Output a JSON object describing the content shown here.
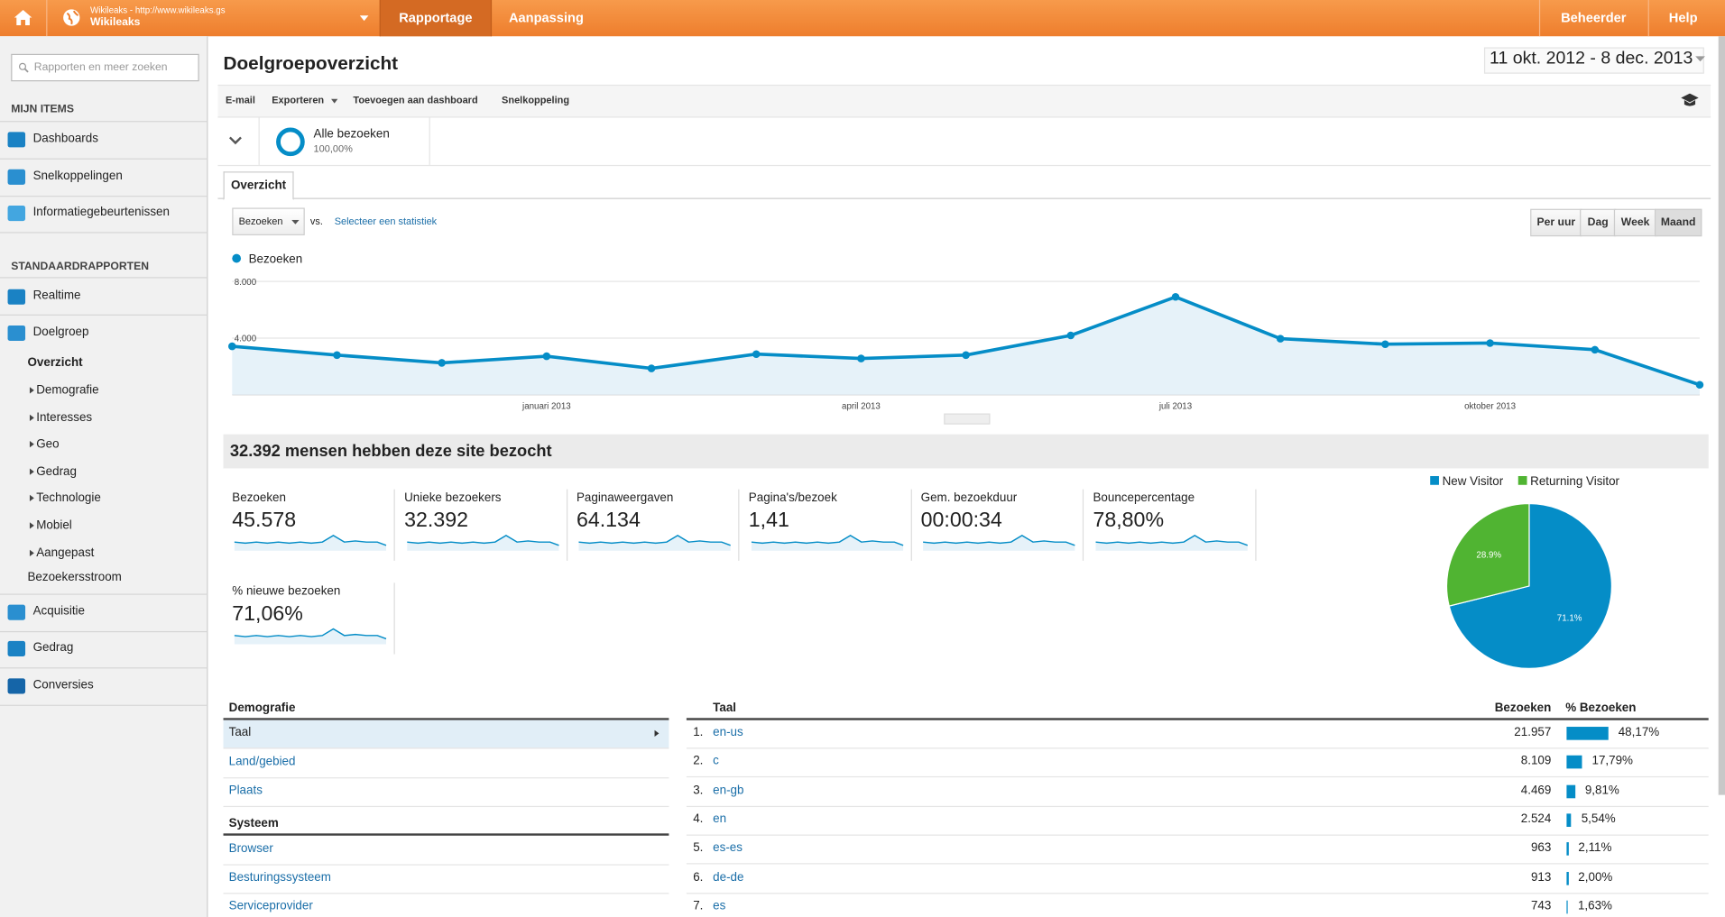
{
  "header": {
    "account_url": "Wikileaks - http://www.wikileaks.gs",
    "account_name": "Wikileaks",
    "tabs": [
      "Rapportage",
      "Aanpassing"
    ],
    "admin": "Beheerder",
    "help": "Help"
  },
  "sidebar": {
    "search": "Rapporten en meer zoeken",
    "my_items_title": "MIJN ITEMS",
    "my_items": [
      "Dashboards",
      "Snelkoppelingen",
      "Informatiegebeurtenissen"
    ],
    "standard_title": "STANDAARDRAPPORTEN",
    "realtime": "Realtime",
    "audience": "Doelgroep",
    "audience_items": [
      "Overzicht",
      "Demografie",
      "Interesses",
      "Geo",
      "Gedrag",
      "Technologie",
      "Mobiel",
      "Aangepast",
      "Bezoekersstroom"
    ],
    "more_items": [
      "Acquisitie",
      "Gedrag",
      "Conversies"
    ]
  },
  "page": {
    "title": "Doelgroepoverzicht",
    "date_range": "11 okt. 2012 - 8 dec. 2013",
    "actions": [
      "E-mail",
      "Exporteren",
      "Toevoegen aan dashboard",
      "Snelkoppeling"
    ],
    "segment": {
      "name": "Alle bezoeken",
      "share": "100,00%"
    },
    "tab": "Overzicht",
    "metric_select": "Bezoeken",
    "vs": "vs.",
    "select_metric": "Selecteer een statistiek",
    "granularity": [
      "Per uur",
      "Dag",
      "Week",
      "Maand"
    ],
    "summary": "32.392 mensen hebben deze site bezocht"
  },
  "line_chart": {
    "type": "line",
    "series": [
      {
        "name": "Bezoeken",
        "color": "#058dc7",
        "values": [
          3420,
          2800,
          2250,
          2720,
          1860,
          2870,
          2560,
          2800,
          4190,
          6910,
          3960,
          3570,
          3650,
          3180,
          700
        ]
      }
    ],
    "categories": [
      null,
      null,
      null,
      "januari 2013",
      null,
      null,
      "april 2013",
      null,
      null,
      "juli 2013",
      null,
      null,
      "oktober 2013",
      null,
      null
    ],
    "ylim": [
      0,
      8000
    ],
    "yticks": [
      {
        "value": 4000,
        "label": "4.000"
      },
      {
        "value": 8000,
        "label": "8.000"
      }
    ],
    "grid": true
  },
  "metrics": [
    {
      "label": "Bezoeken",
      "value": "45.578"
    },
    {
      "label": "Unieke bezoekers",
      "value": "32.392"
    },
    {
      "label": "Paginaweergaven",
      "value": "64.134"
    },
    {
      "label": "Pagina's/bezoek",
      "value": "1,41"
    },
    {
      "label": "Gem. bezoekduur",
      "value": "00:00:34"
    },
    {
      "label": "Bouncepercentage",
      "value": "78,80%"
    },
    {
      "label": "% nieuwe bezoeken",
      "value": "71,06%"
    }
  ],
  "pie_chart": {
    "type": "pie",
    "categories": [
      "New Visitor",
      "Returning Visitor"
    ],
    "values": [
      71.1,
      28.9
    ],
    "value_labels": [
      "71.1%",
      "28.9%"
    ],
    "colors": [
      "#058dc7",
      "#50b432"
    ]
  },
  "demographics": {
    "title": "Demografie",
    "items": [
      "Taal",
      "Land/gebied",
      "Plaats"
    ],
    "system_title": "Systeem",
    "system_items": [
      "Browser",
      "Besturingssysteem",
      "Serviceprovider"
    ]
  },
  "language_table": {
    "columns": [
      "Taal",
      "Bezoeken",
      "% Bezoeken"
    ],
    "rows": [
      {
        "rank": "1.",
        "language": "en-us",
        "visits": "21.957",
        "share": 48.17,
        "share_label": "48,17%"
      },
      {
        "rank": "2.",
        "language": "c",
        "visits": "8.109",
        "share": 17.79,
        "share_label": "17,79%"
      },
      {
        "rank": "3.",
        "language": "en-gb",
        "visits": "4.469",
        "share": 9.81,
        "share_label": "9,81%"
      },
      {
        "rank": "4.",
        "language": "en",
        "visits": "2.524",
        "share": 5.54,
        "share_label": "5,54%"
      },
      {
        "rank": "5.",
        "language": "es-es",
        "visits": "963",
        "share": 2.11,
        "share_label": "2,11%"
      },
      {
        "rank": "6.",
        "language": "de-de",
        "visits": "913",
        "share": 2.0,
        "share_label": "2,00%"
      },
      {
        "rank": "7.",
        "language": "es",
        "visits": "743",
        "share": 1.63,
        "share_label": "1,63%"
      }
    ]
  }
}
